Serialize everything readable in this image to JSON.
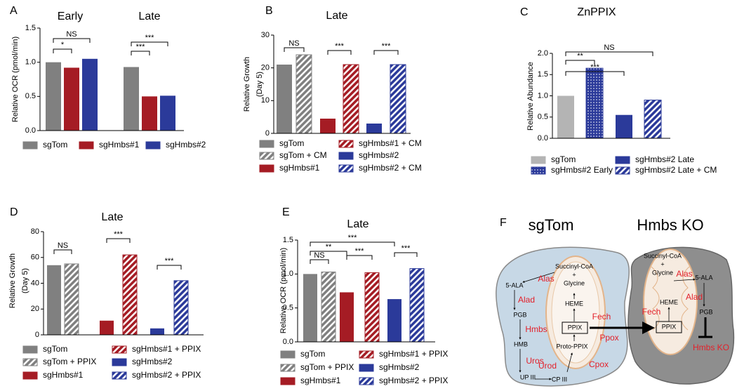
{
  "chart_data": [
    {
      "type": "bar",
      "panel": "A",
      "categories": [
        "Early",
        "Late"
      ],
      "ylabel": [
        "Relative OCR (pmol/min)"
      ],
      "ylim": [
        0,
        1.5
      ],
      "yticks": [
        {
          "value": 0,
          "label": "0.0"
        },
        {
          "value": 0.5,
          "label": "0.5"
        },
        {
          "value": 1,
          "label": "1.0"
        },
        {
          "value": 1.5,
          "label": "1.5"
        }
      ],
      "series": [
        {
          "name": "sgTom",
          "color": "#808080",
          "values": [
            1.0,
            0.93
          ]
        },
        {
          "name": "sgHmbs#1",
          "color": "#a51c24",
          "values": [
            0.92,
            0.5
          ]
        },
        {
          "name": "sgHmbs#2",
          "color": "#2b3a9a",
          "values": [
            1.05,
            0.51
          ]
        }
      ],
      "annotations": [
        "NS",
        "*",
        "***",
        "***"
      ]
    },
    {
      "type": "bar",
      "panel": "B",
      "title": "Late",
      "ylabel": [
        "Relative Growth",
        "(Day 5)"
      ],
      "ylim": [
        0,
        30
      ],
      "yticks": [
        0,
        10,
        20,
        30
      ],
      "series": [
        {
          "name": "sgTom",
          "color": "#808080",
          "values": [
            21
          ]
        },
        {
          "name": "sgTom + CM",
          "color": "#808080",
          "pattern": "hatch",
          "values": [
            24
          ]
        },
        {
          "name": "sgHmbs#1",
          "color": "#a51c24",
          "values": [
            4.5
          ]
        },
        {
          "name": "sgHmbs#1 + CM",
          "color": "#a51c24",
          "pattern": "hatch",
          "values": [
            21
          ]
        },
        {
          "name": "sgHmbs#2",
          "color": "#2b3a9a",
          "values": [
            3
          ]
        },
        {
          "name": "sgHmbs#2 + CM",
          "color": "#2b3a9a",
          "pattern": "hatch",
          "values": [
            21
          ]
        }
      ],
      "annotations": [
        "NS",
        "***",
        "***"
      ]
    },
    {
      "type": "bar",
      "panel": "C",
      "title": "ZnPPIX",
      "ylabel": [
        "Relative Abundance"
      ],
      "ylim": [
        0,
        2
      ],
      "yticks": [
        {
          "value": 0,
          "label": "0.0"
        },
        {
          "value": 0.5,
          "label": "0.5"
        },
        {
          "value": 1,
          "label": "1.0"
        },
        {
          "value": 1.5,
          "label": "1.5"
        },
        {
          "value": 2,
          "label": "2.0"
        }
      ],
      "series": [
        {
          "name": "sgTom",
          "color": "#b4b4b4",
          "values": [
            1.0
          ]
        },
        {
          "name": "sgHmbs#2 Early",
          "color": "#2b3a9a",
          "pattern": "dots",
          "values": [
            1.65
          ]
        },
        {
          "name": "sgHmbs#2 Late",
          "color": "#2b3a9a",
          "values": [
            0.55
          ]
        },
        {
          "name": "sgHmbs#2 Late  + CM",
          "color": "#2b3a9a",
          "pattern": "hatch",
          "values": [
            0.9
          ]
        }
      ],
      "annotations": [
        "NS",
        "**",
        "***"
      ]
    },
    {
      "type": "bar",
      "panel": "D",
      "title": "Late",
      "ylabel": [
        "Relative Growth",
        "(Day 5)"
      ],
      "ylim": [
        0,
        80
      ],
      "yticks": [
        0,
        20,
        40,
        60,
        80
      ],
      "series": [
        {
          "name": "sgTom",
          "color": "#808080",
          "values": [
            54
          ]
        },
        {
          "name": "sgTom + PPIX",
          "color": "#808080",
          "pattern": "hatch",
          "values": [
            55
          ]
        },
        {
          "name": "sgHmbs#1",
          "color": "#a51c24",
          "values": [
            11
          ]
        },
        {
          "name": "sgHmbs#1 + PPIX",
          "color": "#a51c24",
          "pattern": "hatch",
          "values": [
            62
          ]
        },
        {
          "name": "sgHmbs#2",
          "color": "#2b3a9a",
          "values": [
            5
          ]
        },
        {
          "name": "sgHmbs#2 + PPIX",
          "color": "#2b3a9a",
          "pattern": "hatch",
          "values": [
            42
          ]
        }
      ],
      "annotations": [
        "NS",
        "***",
        "***"
      ]
    },
    {
      "type": "bar",
      "panel": "E",
      "title": "Late",
      "ylabel": [
        "Relative OCR (pmol/min)"
      ],
      "ylim": [
        0,
        1.5
      ],
      "yticks": [
        {
          "value": 0,
          "label": "0.0"
        },
        {
          "value": 0.5,
          "label": "0.5"
        },
        {
          "value": 1,
          "label": "1.0"
        },
        {
          "value": 1.5,
          "label": "1.5"
        }
      ],
      "series": [
        {
          "name": "sgTom",
          "color": "#808080",
          "values": [
            1.0
          ]
        },
        {
          "name": "sgTom + PPIX",
          "color": "#808080",
          "pattern": "hatch",
          "values": [
            1.03
          ]
        },
        {
          "name": "sgHmbs#1",
          "color": "#a51c24",
          "values": [
            0.73
          ]
        },
        {
          "name": "sgHmbs#1 + PPIX",
          "color": "#a51c24",
          "pattern": "hatch",
          "values": [
            1.02
          ]
        },
        {
          "name": "sgHmbs#2",
          "color": "#2b3a9a",
          "values": [
            0.63
          ]
        },
        {
          "name": "sgHmbs#2 + PPIX",
          "color": "#2b3a9a",
          "pattern": "hatch",
          "values": [
            1.08
          ]
        }
      ],
      "annotations": [
        "NS",
        "**",
        "***",
        "***",
        "***"
      ]
    }
  ],
  "diagram": {
    "panel": "F",
    "enzyme_color": "#e3202a",
    "left": {
      "title": "sgTom",
      "metabolites": [
        "5-ALA",
        "Succinyl-CoA",
        "+",
        "Glycine",
        "PGB",
        "HEME",
        "HMB",
        "PPIX",
        "Proto-PPIX",
        "UP III",
        "CP III"
      ],
      "enzymes": [
        "Alas",
        "Alad",
        "Hmbs",
        "Fech",
        "Ppox",
        "Uros",
        "Urod",
        "Cpox"
      ]
    },
    "right": {
      "title": "Hmbs KO",
      "metabolites": [
        "Succinyl-CoA",
        "+",
        "Glycine",
        "5-ALA",
        "HEME",
        "PGB",
        "PPIX"
      ],
      "enzymes": [
        "Alas",
        "Alad",
        "Fech",
        "Hmbs KO"
      ]
    }
  }
}
